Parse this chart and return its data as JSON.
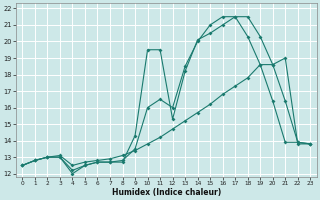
{
  "xlabel": "Humidex (Indice chaleur)",
  "xlim": [
    -0.5,
    23.5
  ],
  "ylim": [
    11.8,
    22.3
  ],
  "yticks": [
    12,
    13,
    14,
    15,
    16,
    17,
    18,
    19,
    20,
    21,
    22
  ],
  "xticks": [
    0,
    1,
    2,
    3,
    4,
    5,
    6,
    7,
    8,
    9,
    10,
    11,
    12,
    13,
    14,
    15,
    16,
    17,
    18,
    19,
    20,
    21,
    22,
    23
  ],
  "bg_color": "#cde8e8",
  "line_color": "#1a7a6e",
  "grid_color": "#b0d8d8",
  "line1_x": [
    0,
    1,
    2,
    3,
    4,
    5,
    6,
    7,
    8,
    9,
    10,
    11,
    12,
    13,
    14,
    15,
    16,
    17,
    18,
    19,
    20,
    21,
    22,
    23
  ],
  "line1_y": [
    12.5,
    12.8,
    13.0,
    13.0,
    12.0,
    12.5,
    12.7,
    12.7,
    12.7,
    14.3,
    19.5,
    19.5,
    15.3,
    18.2,
    20.1,
    20.5,
    21.0,
    21.5,
    20.3,
    18.6,
    16.4,
    13.9,
    13.9,
    13.8
  ],
  "line2_x": [
    0,
    1,
    2,
    3,
    4,
    5,
    6,
    7,
    8,
    9,
    10,
    11,
    12,
    13,
    14,
    15,
    16,
    17,
    18,
    19,
    20,
    21,
    22,
    23
  ],
  "line2_y": [
    12.5,
    12.8,
    13.0,
    13.0,
    12.2,
    12.5,
    12.7,
    12.7,
    12.8,
    13.5,
    16.0,
    16.5,
    16.0,
    18.5,
    20.0,
    21.0,
    21.5,
    21.5,
    21.5,
    20.3,
    18.6,
    16.4,
    13.9,
    13.8
  ],
  "line3_x": [
    0,
    1,
    2,
    3,
    4,
    5,
    6,
    7,
    8,
    9,
    10,
    11,
    12,
    13,
    14,
    15,
    16,
    17,
    18,
    19,
    20,
    21,
    22,
    23
  ],
  "line3_y": [
    12.5,
    12.8,
    13.0,
    13.1,
    12.5,
    12.7,
    12.8,
    12.9,
    13.1,
    13.4,
    13.8,
    14.2,
    14.7,
    15.2,
    15.7,
    16.2,
    16.8,
    17.3,
    17.8,
    18.6,
    18.6,
    19.0,
    13.8,
    13.8
  ]
}
